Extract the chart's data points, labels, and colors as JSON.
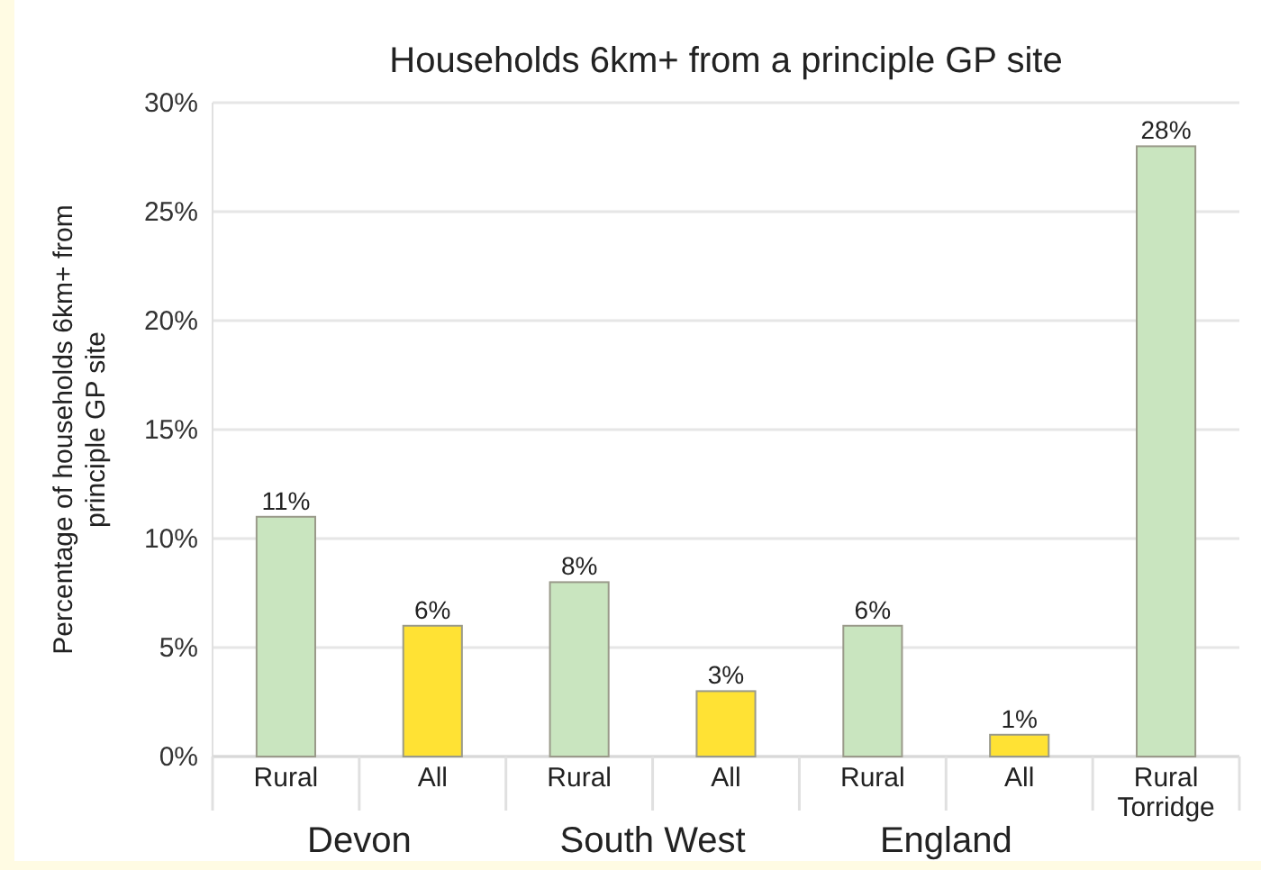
{
  "chart_data": {
    "type": "bar",
    "title": "Households 6km+ from a principle GP site",
    "ylabel": "Percentage of households 6km+ from principle GP site",
    "categories": [
      "Rural",
      "All",
      "Rural",
      "All",
      "Rural",
      "All",
      "Rural Torridge"
    ],
    "values": [
      11,
      6,
      8,
      3,
      6,
      1,
      28
    ],
    "colors": [
      "#c9e5bf",
      "#ffe234",
      "#c9e5bf",
      "#ffe234",
      "#c9e5bf",
      "#ffe234",
      "#c9e5bf"
    ],
    "value_labels": [
      "11%",
      "6%",
      "8%",
      "3%",
      "6%",
      "1%",
      "28%"
    ],
    "ylim": [
      0,
      30
    ],
    "yticks": [
      {
        "value": 0,
        "label": "0%"
      },
      {
        "value": 5,
        "label": "5%"
      },
      {
        "value": 10,
        "label": "10%"
      },
      {
        "value": 15,
        "label": "15%"
      },
      {
        "value": 20,
        "label": "20%"
      },
      {
        "value": 25,
        "label": "25%"
      },
      {
        "value": 30,
        "label": "30%"
      }
    ],
    "grid": "y",
    "annotations": [
      "Devon",
      "South West",
      "England"
    ]
  }
}
